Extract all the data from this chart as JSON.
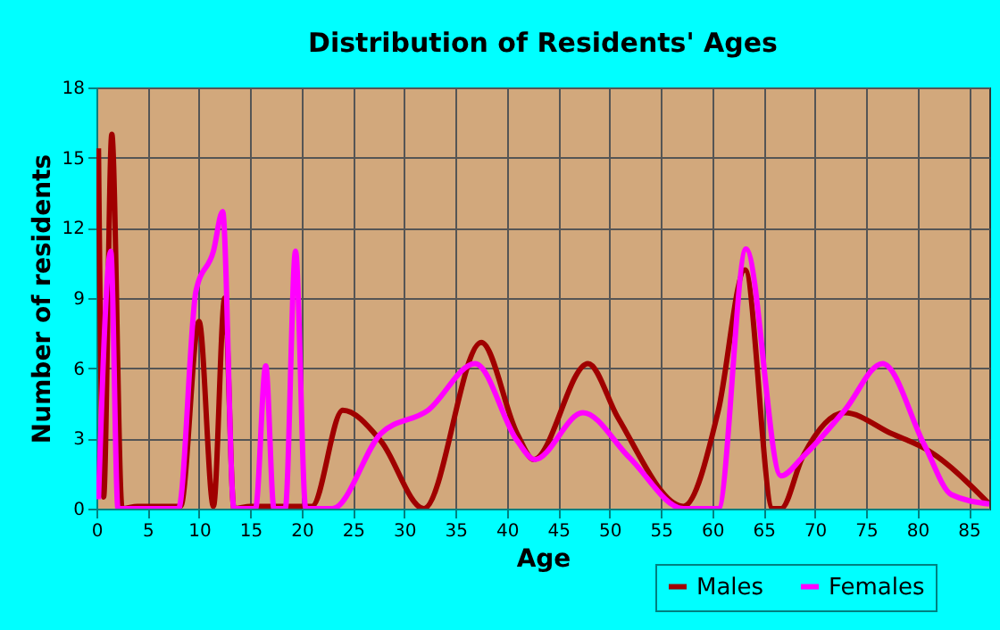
{
  "chart_data": {
    "type": "line",
    "title": "Distribution of Residents' Ages",
    "xlabel": "Age",
    "ylabel": "Number of residents",
    "xlim": [
      0,
      87
    ],
    "xticks": [
      0,
      5,
      10,
      15,
      20,
      25,
      30,
      35,
      40,
      45,
      50,
      55,
      60,
      65,
      70,
      75,
      80,
      85
    ],
    "ylim": [
      0,
      18
    ],
    "yticks": [
      0,
      3,
      6,
      9,
      12,
      15,
      18
    ],
    "grid": true,
    "legend": "bottom right",
    "marker": "none",
    "line_style": "solid",
    "series": [
      {
        "name": "Males",
        "color": "#a00000",
        "x": [
          0.2,
          0.7,
          1.5,
          2.5,
          4,
          8.2,
          10,
          11.4,
          12.5,
          13.4,
          15,
          21,
          24,
          27.7,
          31.9,
          37.5,
          41,
          42.6,
          47.9,
          50.8,
          57.2,
          60.6,
          63.2,
          65.9,
          66.7,
          68.8,
          72.9,
          77.5,
          81,
          87
        ],
        "values": [
          15.4,
          0.5,
          16,
          0,
          0.1,
          0.1,
          8,
          0.1,
          9,
          0,
          0.1,
          0.1,
          4.2,
          2.9,
          0,
          7.1,
          3.2,
          2.1,
          6.2,
          3.9,
          0.1,
          4.2,
          10.2,
          0,
          0,
          2.2,
          4.1,
          3.2,
          2.5,
          0.2
        ]
      },
      {
        "name": "Females",
        "color": "#ff00ff",
        "x": [
          0.2,
          1.4,
          2.1,
          8,
          9.7,
          11.4,
          12.3,
          13.4,
          15.5,
          16.5,
          17.3,
          18.4,
          19.4,
          20.4,
          23,
          27.7,
          32.3,
          36.9,
          41,
          42.7,
          47.4,
          51.9,
          57.2,
          60.6,
          63.3,
          66.7,
          68.8,
          72.9,
          76.6,
          80.7,
          83.3,
          87
        ],
        "values": [
          0.4,
          11,
          0,
          0,
          9.3,
          11,
          12.7,
          0,
          0,
          6.1,
          0,
          0,
          11,
          0,
          0,
          3.2,
          4.2,
          6.2,
          2.9,
          2.1,
          4.1,
          2.2,
          0,
          0,
          11.1,
          1.4,
          2.2,
          4.2,
          6.2,
          2.7,
          0.6,
          0.2
        ]
      }
    ]
  }
}
